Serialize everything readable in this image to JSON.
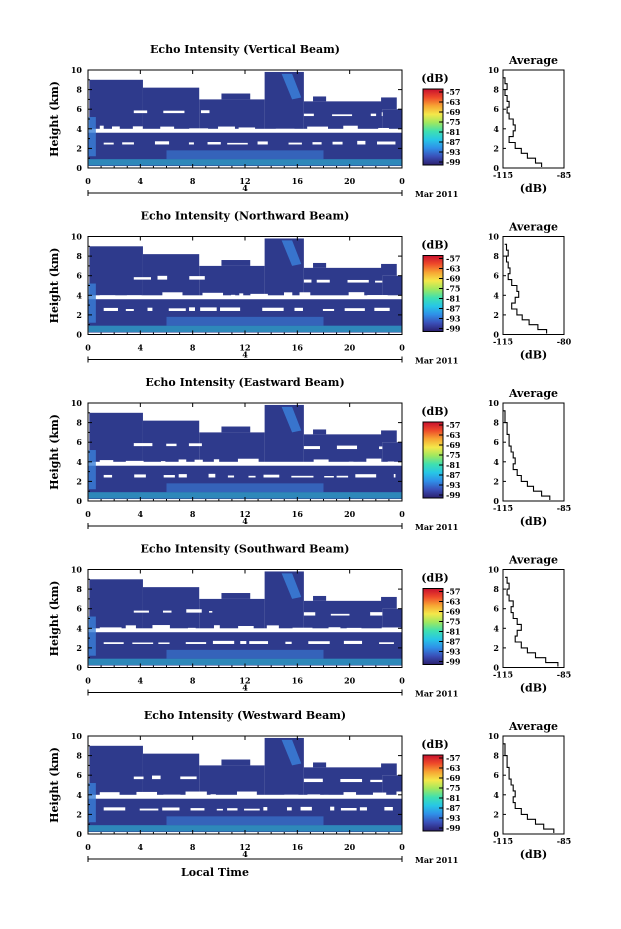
{
  "colors": {
    "background": "#ffffff",
    "echo_fill": "#2e3a8c",
    "echo_low_layer": "#3a7fd8",
    "echo_surface": "#2fc8e0",
    "colormap": [
      "#2b1f6e",
      "#3a4fb8",
      "#2f8fe8",
      "#27c6e6",
      "#3fe0b0",
      "#9ee860",
      "#f4e84a",
      "#f7a533",
      "#ee4a2a",
      "#c8102e"
    ]
  },
  "chart_data": [
    {
      "type": "heatmap",
      "title": "Echo Intensity (Vertical Beam)",
      "ylabel": "Height (km)",
      "xlabel": "",
      "x_ticks": [
        "0",
        "4",
        "8",
        "12",
        "16",
        "20",
        "0"
      ],
      "y_ticks": [
        "0",
        "2",
        "4",
        "6",
        "8",
        "10"
      ],
      "xlim": [
        0,
        24
      ],
      "ylim": [
        0,
        10
      ],
      "date_label": "4",
      "month_label": "Mar 2011",
      "colorbar": {
        "unit": "(dB)",
        "ticks": [
          "-57",
          "-63",
          "-69",
          "-75",
          "-81",
          "-87",
          "-93",
          "-99"
        ]
      },
      "average": {
        "title": "Average",
        "xlabel": "(dB)",
        "x_ticks": [
          "-115",
          "-85"
        ],
        "xlim": [
          -115,
          -85
        ],
        "y_ticks": [
          "0",
          "2",
          "4",
          "6",
          "8",
          "10"
        ],
        "profile": [
          [
            -96,
            0.1
          ],
          [
            -99,
            0.5
          ],
          [
            -103,
            1.0
          ],
          [
            -106,
            1.5
          ],
          [
            -109,
            2.0
          ],
          [
            -112,
            2.6
          ],
          [
            -110,
            3.2
          ],
          [
            -109,
            3.8
          ],
          [
            -110,
            4.4
          ],
          [
            -112,
            5.0
          ],
          [
            -113,
            5.6
          ],
          [
            -112,
            6.2
          ],
          [
            -113,
            6.8
          ],
          [
            -114,
            7.4
          ],
          [
            -113,
            8.0
          ],
          [
            -114,
            8.6
          ],
          [
            -115,
            9.2
          ]
        ]
      }
    },
    {
      "type": "heatmap",
      "title": "Echo Intensity (Northward Beam)",
      "ylabel": "Height (km)",
      "xlabel": "",
      "x_ticks": [
        "0",
        "4",
        "8",
        "12",
        "16",
        "20",
        "0"
      ],
      "y_ticks": [
        "0",
        "2",
        "4",
        "6",
        "8",
        "10"
      ],
      "xlim": [
        0,
        24
      ],
      "ylim": [
        0,
        10
      ],
      "date_label": "4",
      "month_label": "Mar 2011",
      "colorbar": {
        "unit": "(dB)",
        "ticks": [
          "-57",
          "-63",
          "-69",
          "-75",
          "-81",
          "-87",
          "-93",
          "-99"
        ]
      },
      "average": {
        "title": "Average",
        "xlabel": "(dB)",
        "x_ticks": [
          "-115",
          "-80"
        ],
        "xlim": [
          -115,
          -80
        ],
        "y_ticks": [
          "0",
          "2",
          "4",
          "6",
          "8",
          "10"
        ],
        "profile": [
          [
            -90,
            0.1
          ],
          [
            -95,
            0.5
          ],
          [
            -100,
            1.0
          ],
          [
            -104,
            1.5
          ],
          [
            -107,
            2.0
          ],
          [
            -110,
            2.6
          ],
          [
            -108,
            3.2
          ],
          [
            -106,
            3.8
          ],
          [
            -107,
            4.4
          ],
          [
            -110,
            5.0
          ],
          [
            -112,
            5.6
          ],
          [
            -111,
            6.2
          ],
          [
            -112,
            6.8
          ],
          [
            -113,
            7.4
          ],
          [
            -112,
            8.0
          ],
          [
            -113,
            8.6
          ],
          [
            -114,
            9.2
          ]
        ]
      }
    },
    {
      "type": "heatmap",
      "title": "Echo Intensity (Eastward Beam)",
      "ylabel": "Height (km)",
      "xlabel": "",
      "x_ticks": [
        "0",
        "4",
        "8",
        "12",
        "16",
        "20",
        "0"
      ],
      "y_ticks": [
        "0",
        "2",
        "4",
        "6",
        "8",
        "10"
      ],
      "xlim": [
        0,
        24
      ],
      "ylim": [
        0,
        10
      ],
      "date_label": "4",
      "month_label": "Mar 2011",
      "colorbar": {
        "unit": "(dB)",
        "ticks": [
          "-57",
          "-63",
          "-69",
          "-75",
          "-81",
          "-87",
          "-93",
          "-99"
        ]
      },
      "average": {
        "title": "Average",
        "xlabel": "(dB)",
        "x_ticks": [
          "-115",
          "-85"
        ],
        "xlim": [
          -115,
          -85
        ],
        "y_ticks": [
          "0",
          "2",
          "4",
          "6",
          "8",
          "10"
        ],
        "profile": [
          [
            -92,
            0.1
          ],
          [
            -96,
            0.5
          ],
          [
            -100,
            1.0
          ],
          [
            -103,
            1.5
          ],
          [
            -106,
            2.0
          ],
          [
            -108,
            2.6
          ],
          [
            -110,
            3.2
          ],
          [
            -109,
            3.8
          ],
          [
            -110,
            4.4
          ],
          [
            -111,
            5.0
          ],
          [
            -112,
            5.6
          ],
          [
            -112,
            6.2
          ],
          [
            -113,
            6.8
          ],
          [
            -113,
            7.4
          ],
          [
            -114,
            8.0
          ],
          [
            -114,
            8.6
          ],
          [
            -115,
            9.2
          ]
        ]
      }
    },
    {
      "type": "heatmap",
      "title": "Echo Intensity (Southward Beam)",
      "ylabel": "Height (km)",
      "xlabel": "",
      "x_ticks": [
        "0",
        "4",
        "8",
        "12",
        "16",
        "20",
        "0"
      ],
      "y_ticks": [
        "0",
        "2",
        "4",
        "6",
        "8",
        "10"
      ],
      "xlim": [
        0,
        24
      ],
      "ylim": [
        0,
        10
      ],
      "date_label": "4",
      "month_label": "Mar 2011",
      "colorbar": {
        "unit": "(dB)",
        "ticks": [
          "-57",
          "-63",
          "-69",
          "-75",
          "-81",
          "-87",
          "-93",
          "-99"
        ]
      },
      "average": {
        "title": "Average",
        "xlabel": "(dB)",
        "x_ticks": [
          "-115",
          "-85"
        ],
        "xlim": [
          -115,
          -85
        ],
        "y_ticks": [
          "0",
          "2",
          "4",
          "6",
          "8",
          "10"
        ],
        "profile": [
          [
            -88,
            0.1
          ],
          [
            -94,
            0.5
          ],
          [
            -99,
            1.0
          ],
          [
            -103,
            1.5
          ],
          [
            -106,
            2.0
          ],
          [
            -109,
            2.6
          ],
          [
            -108,
            3.2
          ],
          [
            -106,
            3.8
          ],
          [
            -108,
            4.4
          ],
          [
            -110,
            5.0
          ],
          [
            -111,
            5.6
          ],
          [
            -110,
            6.2
          ],
          [
            -112,
            6.8
          ],
          [
            -113,
            7.4
          ],
          [
            -112,
            8.0
          ],
          [
            -113,
            8.6
          ],
          [
            -114,
            9.2
          ]
        ]
      }
    },
    {
      "type": "heatmap",
      "title": "Echo Intensity (Westward Beam)",
      "ylabel": "Height (km)",
      "xlabel": "Local Time",
      "x_ticks": [
        "0",
        "4",
        "8",
        "12",
        "16",
        "20",
        "0"
      ],
      "y_ticks": [
        "0",
        "2",
        "4",
        "6",
        "8",
        "10"
      ],
      "xlim": [
        0,
        24
      ],
      "ylim": [
        0,
        10
      ],
      "date_label": "4",
      "month_label": "Mar 2011",
      "colorbar": {
        "unit": "(dB)",
        "ticks": [
          "-57",
          "-63",
          "-69",
          "-75",
          "-81",
          "-87",
          "-93",
          "-99"
        ]
      },
      "average": {
        "title": "Average",
        "xlabel": "(dB)",
        "x_ticks": [
          "-115",
          "-85"
        ],
        "xlim": [
          -115,
          -85
        ],
        "y_ticks": [
          "0",
          "2",
          "4",
          "6",
          "8",
          "10"
        ],
        "profile": [
          [
            -90,
            0.1
          ],
          [
            -95,
            0.5
          ],
          [
            -99,
            1.0
          ],
          [
            -103,
            1.5
          ],
          [
            -106,
            2.0
          ],
          [
            -109,
            2.6
          ],
          [
            -110,
            3.2
          ],
          [
            -109,
            3.8
          ],
          [
            -110,
            4.4
          ],
          [
            -111,
            5.0
          ],
          [
            -112,
            5.6
          ],
          [
            -112,
            6.2
          ],
          [
            -113,
            6.8
          ],
          [
            -113,
            7.4
          ],
          [
            -114,
            8.0
          ],
          [
            -114,
            8.6
          ],
          [
            -115,
            9.2
          ]
        ]
      }
    }
  ]
}
